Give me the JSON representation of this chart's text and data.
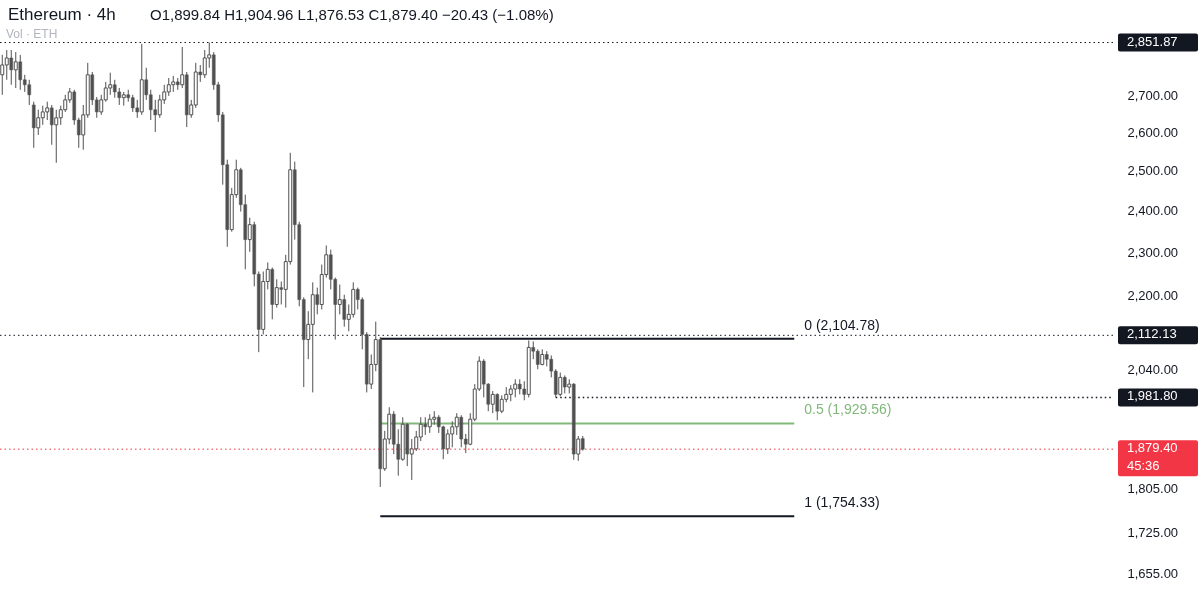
{
  "chart_data": {
    "type": "candlestick",
    "title": "Ethereum · 4h",
    "subtitle": "O1,899.84 H1,904.96 L1,876.53 C1,879.40 −20.43 (−1.08%)",
    "color": "#505050",
    "categories": [
      null,
      null,
      null,
      null,
      null,
      null,
      null,
      null,
      null,
      null,
      null,
      null,
      null,
      null,
      null,
      null,
      null,
      null,
      null,
      null,
      null,
      null,
      null,
      null,
      null,
      null,
      null,
      null,
      null,
      null,
      null,
      null,
      null,
      null,
      null,
      null,
      null,
      null,
      null,
      null,
      null,
      null,
      null,
      null,
      null,
      null,
      null,
      null,
      null,
      null,
      null,
      null,
      null,
      null,
      null,
      null,
      null,
      null,
      null,
      null,
      null,
      null,
      null,
      null,
      null,
      null,
      null,
      null,
      null,
      null,
      null,
      null,
      null,
      null,
      null,
      null,
      null,
      null,
      null,
      null,
      null,
      null,
      null,
      null,
      null,
      null,
      null,
      null,
      null,
      null,
      null,
      null,
      null,
      null,
      null,
      null,
      null,
      null,
      null,
      null,
      null,
      null,
      null,
      null,
      null,
      null,
      null,
      null,
      null,
      null,
      null,
      null,
      null,
      null,
      null,
      null,
      null,
      null,
      null,
      null,
      null,
      null,
      null,
      null,
      null,
      null,
      null,
      null,
      null,
      null,
      null,
      null,
      null,
      null,
      null,
      null,
      null,
      null,
      null,
      null,
      null,
      null,
      null,
      null,
      null,
      null,
      null,
      null,
      null,
      null,
      null,
      null,
      null,
      null,
      null,
      null,
      null,
      null,
      null,
      null,
      null,
      null,
      null,
      null,
      null,
      null,
      null,
      null,
      null,
      null,
      null,
      null,
      null,
      null,
      null,
      null,
      null,
      null,
      null,
      null,
      null,
      null,
      null,
      null,
      null,
      null,
      null,
      null,
      null,
      null,
      null,
      null,
      null,
      null,
      null,
      null,
      null,
      null,
      null,
      null,
      null,
      null,
      null,
      null,
      null,
      null,
      null,
      null,
      null,
      null,
      null,
      null,
      null,
      null,
      null,
      null,
      null,
      null,
      null,
      null,
      null,
      null,
      null,
      null,
      null,
      null,
      null,
      null,
      null,
      null,
      null,
      null,
      null,
      null,
      null,
      null,
      null,
      null,
      null,
      null,
      null,
      null,
      null,
      null,
      null,
      null,
      null,
      null
    ],
    "ohlc": [
      [
        2759,
        2816,
        2703,
        2787
      ],
      [
        2787,
        2830,
        2745,
        2807
      ],
      [
        2807,
        2830,
        2731,
        2773
      ],
      [
        2773,
        2824,
        2722,
        2796
      ],
      [
        2796,
        2816,
        2717,
        2745
      ],
      [
        2745,
        2759,
        2711,
        2731
      ],
      [
        2731,
        2745,
        2675,
        2703
      ],
      [
        2675,
        2684,
        2560,
        2613
      ],
      [
        2613,
        2662,
        2594,
        2640
      ],
      [
        2640,
        2673,
        2621,
        2656
      ],
      [
        2656,
        2684,
        2634,
        2667
      ],
      [
        2667,
        2675,
        2568,
        2621
      ],
      [
        2621,
        2662,
        2521,
        2640
      ],
      [
        2640,
        2673,
        2621,
        2662
      ],
      [
        2662,
        2703,
        2656,
        2689
      ],
      [
        2689,
        2722,
        2681,
        2711
      ],
      [
        2711,
        2717,
        2621,
        2634
      ],
      [
        2634,
        2640,
        2560,
        2594
      ],
      [
        2594,
        2675,
        2555,
        2648
      ],
      [
        2648,
        2793,
        2640,
        2759
      ],
      [
        2759,
        2767,
        2675,
        2689
      ],
      [
        2689,
        2697,
        2640,
        2656
      ],
      [
        2656,
        2703,
        2648,
        2689
      ],
      [
        2689,
        2739,
        2684,
        2722
      ],
      [
        2722,
        2765,
        2703,
        2731
      ],
      [
        2731,
        2745,
        2695,
        2711
      ],
      [
        2711,
        2722,
        2675,
        2695
      ],
      [
        2695,
        2711,
        2673,
        2703
      ],
      [
        2703,
        2717,
        2684,
        2695
      ],
      [
        2695,
        2703,
        2656,
        2667
      ],
      [
        2667,
        2689,
        2640,
        2656
      ],
      [
        2656,
        2848,
        2648,
        2745
      ],
      [
        2745,
        2779,
        2689,
        2703
      ],
      [
        2703,
        2717,
        2634,
        2662
      ],
      [
        2662,
        2689,
        2602,
        2648
      ],
      [
        2648,
        2703,
        2640,
        2689
      ],
      [
        2689,
        2731,
        2678,
        2711
      ],
      [
        2711,
        2750,
        2700,
        2731
      ],
      [
        2731,
        2756,
        2711,
        2739
      ],
      [
        2739,
        2750,
        2717,
        2731
      ],
      [
        2731,
        2839,
        2722,
        2759
      ],
      [
        2759,
        2767,
        2615,
        2648
      ],
      [
        2648,
        2689,
        2640,
        2675
      ],
      [
        2675,
        2793,
        2667,
        2767
      ],
      [
        2767,
        2787,
        2739,
        2759
      ],
      [
        2759,
        2830,
        2750,
        2807
      ],
      [
        2807,
        2851.87,
        2779,
        2816
      ],
      [
        2816,
        2824,
        2717,
        2731
      ],
      [
        2731,
        2739,
        2629,
        2648
      ],
      [
        2648,
        2656,
        2465,
        2516
      ],
      [
        2516,
        2529,
        2313,
        2354
      ],
      [
        2354,
        2457,
        2349,
        2440
      ],
      [
        2440,
        2529,
        2432,
        2503
      ],
      [
        2503,
        2508,
        2398,
        2415
      ],
      [
        2415,
        2440,
        2260,
        2330
      ],
      [
        2330,
        2383,
        2301,
        2366
      ],
      [
        2366,
        2373,
        2221,
        2249
      ],
      [
        2249,
        2255,
        2076,
        2125
      ],
      [
        2125,
        2255,
        2114,
        2232
      ],
      [
        2232,
        2276,
        2214,
        2260
      ],
      [
        2260,
        2264,
        2147,
        2180
      ],
      [
        2180,
        2237,
        2173,
        2218
      ],
      [
        2218,
        2232,
        2180,
        2214
      ],
      [
        2214,
        2294,
        2173,
        2278
      ],
      [
        2278,
        2547,
        2271,
        2503
      ],
      [
        2503,
        2524,
        2330,
        2366
      ],
      [
        2366,
        2373,
        2176,
        2191
      ],
      [
        2191,
        2196,
        2003,
        2103
      ],
      [
        2103,
        2165,
        2061,
        2136
      ],
      [
        2136,
        2230,
        1992,
        2202
      ],
      [
        2202,
        2218,
        2158,
        2180
      ],
      [
        2180,
        2271,
        2169,
        2248
      ],
      [
        2248,
        2316,
        2241,
        2294
      ],
      [
        2294,
        2306,
        2214,
        2237
      ],
      [
        2237,
        2241,
        2103,
        2180
      ],
      [
        2180,
        2225,
        2158,
        2191
      ],
      [
        2191,
        2202,
        2131,
        2147
      ],
      [
        2147,
        2180,
        2121,
        2158
      ],
      [
        2158,
        2230,
        2151,
        2214
      ],
      [
        2214,
        2218,
        2169,
        2191
      ],
      [
        2191,
        2196,
        2082,
        2114
      ],
      [
        2114,
        2119,
        1992,
        2009
      ],
      [
        2009,
        2071,
        1999,
        2050
      ],
      [
        2050,
        2142,
        2036,
        2103
      ],
      [
        2103,
        2108,
        1808,
        1842
      ],
      [
        1842,
        1915,
        1838,
        1899
      ],
      [
        1899,
        1962,
        1889,
        1948
      ],
      [
        1948,
        1954,
        1870,
        1889
      ],
      [
        1889,
        1918,
        1829,
        1860
      ],
      [
        1860,
        1942,
        1857,
        1928
      ],
      [
        1928,
        1930,
        1847,
        1870
      ],
      [
        1870,
        1899,
        1821,
        1880
      ],
      [
        1880,
        1915,
        1876,
        1903
      ],
      [
        1903,
        1942,
        1895,
        1928
      ],
      [
        1928,
        1942,
        1907,
        1923
      ],
      [
        1923,
        1948,
        1911,
        1938
      ],
      [
        1938,
        1954,
        1927,
        1942
      ],
      [
        1942,
        1946,
        1911,
        1923
      ],
      [
        1923,
        1925,
        1860,
        1880
      ],
      [
        1880,
        1918,
        1870,
        1909
      ],
      [
        1909,
        1934,
        1883,
        1923
      ],
      [
        1923,
        1950,
        1907,
        1942
      ],
      [
        1942,
        1946,
        1883,
        1899
      ],
      [
        1899,
        1909,
        1872,
        1889
      ],
      [
        1889,
        1950,
        1887,
        1938
      ],
      [
        1938,
        2009,
        1934,
        1999
      ],
      [
        1999,
        2067,
        1995,
        2057
      ],
      [
        2057,
        2061,
        1982,
        2009
      ],
      [
        2009,
        2011,
        1954,
        1968
      ],
      [
        1968,
        1995,
        1950,
        1988
      ],
      [
        1988,
        1990,
        1936,
        1954
      ],
      [
        1954,
        1986,
        1950,
        1978
      ],
      [
        1978,
        2003,
        1972,
        1988
      ],
      [
        1988,
        2007,
        1974,
        1999
      ],
      [
        1999,
        2019,
        1982,
        2009
      ],
      [
        2009,
        2019,
        1988,
        1999
      ],
      [
        1999,
        2015,
        1976,
        1988
      ],
      [
        1988,
        2101,
        1982,
        2086
      ],
      [
        2086,
        2099,
        2061,
        2078
      ],
      [
        2078,
        2082,
        2040,
        2050
      ],
      [
        2050,
        2082,
        2048,
        2071
      ],
      [
        2071,
        2078,
        2046,
        2061
      ],
      [
        2061,
        2069,
        2023,
        2036
      ],
      [
        2036,
        2040,
        1981.8,
        1988
      ],
      [
        1988,
        2033,
        1984,
        2023
      ],
      [
        2023,
        2027,
        1990,
        2003
      ],
      [
        2003,
        2019,
        1990,
        2009
      ],
      [
        2009,
        2011,
        1859,
        1870
      ],
      [
        1870,
        1905,
        1857,
        1899
      ],
      [
        1899.84,
        1904.96,
        1876.53,
        1879.4
      ],
      null,
      null,
      null,
      null,
      null,
      null,
      null,
      null,
      null,
      null,
      null,
      null,
      null,
      null,
      null,
      null,
      null,
      null,
      null,
      null,
      null,
      null,
      null,
      null,
      null,
      null,
      null,
      null,
      null,
      null,
      null,
      null,
      null,
      null,
      null,
      null,
      null,
      null,
      null,
      null,
      null,
      null,
      null,
      null,
      null,
      null,
      null,
      null,
      null,
      null,
      null,
      null,
      null,
      null,
      null,
      null,
      null,
      null,
      null,
      null,
      null,
      null,
      null,
      null,
      null,
      null,
      null,
      null,
      null,
      null,
      null,
      null,
      null,
      null,
      null,
      null,
      null,
      null,
      null,
      null,
      null,
      null,
      null,
      null,
      null,
      null,
      null,
      null,
      null,
      null,
      null,
      null,
      null,
      null,
      null,
      null,
      null,
      null,
      null,
      null,
      null,
      null,
      null,
      null,
      null,
      null,
      null,
      null,
      null,
      null,
      null,
      null,
      null,
      null,
      null,
      null,
      null,
      null
    ],
    "series": [
      {
        "name": "0 (2,104.78)",
        "type": "line",
        "color": "#131722",
        "values": [
          null,
          null,
          null,
          null,
          null,
          null,
          null,
          null,
          null,
          null,
          null,
          null,
          null,
          null,
          null,
          null,
          null,
          null,
          null,
          null,
          null,
          null,
          null,
          null,
          null,
          null,
          null,
          null,
          null,
          null,
          null,
          null,
          null,
          null,
          null,
          null,
          null,
          null,
          null,
          null,
          null,
          null,
          null,
          null,
          null,
          null,
          null,
          null,
          null,
          null,
          null,
          null,
          null,
          null,
          null,
          null,
          null,
          null,
          null,
          null,
          null,
          null,
          null,
          null,
          null,
          null,
          null,
          null,
          null,
          null,
          null,
          null,
          null,
          null,
          null,
          null,
          null,
          null,
          null,
          null,
          null,
          null,
          null,
          null,
          2104.78,
          2104.78,
          2104.78,
          2104.78,
          2104.78,
          2104.78,
          2104.78,
          2104.78,
          2104.78,
          2104.78,
          2104.78,
          2104.78,
          2104.78,
          2104.78,
          2104.78,
          2104.78,
          2104.78,
          2104.78,
          2104.78,
          2104.78,
          2104.78,
          2104.78,
          2104.78,
          2104.78,
          2104.78,
          2104.78,
          2104.78,
          2104.78,
          2104.78,
          2104.78,
          2104.78,
          2104.78,
          2104.78,
          2104.78,
          2104.78,
          2104.78,
          2104.78,
          2104.78,
          2104.78,
          2104.78,
          2104.78,
          2104.78,
          2104.78,
          2104.78,
          2104.78,
          2104.78,
          2104.78,
          2104.78,
          2104.78,
          2104.78,
          2104.78,
          2104.78,
          2104.78,
          2104.78,
          2104.78,
          2104.78,
          2104.78,
          2104.78,
          2104.78,
          2104.78,
          2104.78,
          2104.78,
          2104.78,
          2104.78,
          2104.78,
          2104.78,
          2104.78,
          2104.78,
          2104.78,
          2104.78,
          2104.78,
          2104.78,
          2104.78,
          2104.78,
          2104.78,
          2104.78,
          2104.78,
          2104.78,
          2104.78,
          2104.78,
          2104.78,
          2104.78,
          2104.78,
          2104.78,
          2104.78,
          2104.78,
          2104.78,
          2104.78,
          2104.78,
          2104.78,
          2104.78,
          2104.78,
          2104.78,
          null,
          null,
          null,
          null,
          null,
          null,
          null,
          null,
          null,
          null,
          null,
          null,
          null,
          null,
          null,
          null,
          null,
          null,
          null,
          null,
          null,
          null,
          null,
          null,
          null,
          null,
          null,
          null,
          null,
          null,
          null,
          null,
          null,
          null,
          null,
          null,
          null,
          null,
          null,
          null,
          null,
          null,
          null,
          null,
          null,
          null,
          null,
          null,
          null,
          null,
          null,
          null,
          null,
          null,
          null,
          null,
          null,
          null,
          null,
          null,
          null,
          null,
          null,
          null,
          null,
          null,
          null,
          null,
          null,
          null,
          null
        ]
      },
      {
        "name": "0.5 (1,929.56)",
        "type": "line",
        "color": "#81b97a",
        "values": [
          null,
          null,
          null,
          null,
          null,
          null,
          null,
          null,
          null,
          null,
          null,
          null,
          null,
          null,
          null,
          null,
          null,
          null,
          null,
          null,
          null,
          null,
          null,
          null,
          null,
          null,
          null,
          null,
          null,
          null,
          null,
          null,
          null,
          null,
          null,
          null,
          null,
          null,
          null,
          null,
          null,
          null,
          null,
          null,
          null,
          null,
          null,
          null,
          null,
          null,
          null,
          null,
          null,
          null,
          null,
          null,
          null,
          null,
          null,
          null,
          null,
          null,
          null,
          null,
          null,
          null,
          null,
          null,
          null,
          null,
          null,
          null,
          null,
          null,
          null,
          null,
          null,
          null,
          null,
          null,
          null,
          null,
          null,
          null,
          1929.56,
          1929.56,
          1929.56,
          1929.56,
          1929.56,
          1929.56,
          1929.56,
          1929.56,
          1929.56,
          1929.56,
          1929.56,
          1929.56,
          1929.56,
          1929.56,
          1929.56,
          1929.56,
          1929.56,
          1929.56,
          1929.56,
          1929.56,
          1929.56,
          1929.56,
          1929.56,
          1929.56,
          1929.56,
          1929.56,
          1929.56,
          1929.56,
          1929.56,
          1929.56,
          1929.56,
          1929.56,
          1929.56,
          1929.56,
          1929.56,
          1929.56,
          1929.56,
          1929.56,
          1929.56,
          1929.56,
          1929.56,
          1929.56,
          1929.56,
          1929.56,
          1929.56,
          1929.56,
          1929.56,
          1929.56,
          1929.56,
          1929.56,
          1929.56,
          1929.56,
          1929.56,
          1929.56,
          1929.56,
          1929.56,
          1929.56,
          1929.56,
          1929.56,
          1929.56,
          1929.56,
          1929.56,
          1929.56,
          1929.56,
          1929.56,
          1929.56,
          1929.56,
          1929.56,
          1929.56,
          1929.56,
          1929.56,
          1929.56,
          1929.56,
          1929.56,
          1929.56,
          1929.56,
          1929.56,
          1929.56,
          1929.56,
          1929.56,
          1929.56,
          1929.56,
          1929.56,
          1929.56,
          1929.56,
          1929.56,
          1929.56,
          1929.56,
          1929.56,
          1929.56,
          1929.56,
          1929.56,
          1929.56,
          null,
          null,
          null,
          null,
          null,
          null,
          null,
          null,
          null,
          null,
          null,
          null,
          null,
          null,
          null,
          null,
          null,
          null,
          null,
          null,
          null,
          null,
          null,
          null,
          null,
          null,
          null,
          null,
          null,
          null,
          null,
          null,
          null,
          null,
          null,
          null,
          null,
          null,
          null,
          null,
          null,
          null,
          null,
          null,
          null,
          null,
          null,
          null,
          null,
          null,
          null,
          null,
          null,
          null,
          null,
          null,
          null,
          null,
          null,
          null,
          null,
          null,
          null,
          null,
          null,
          null,
          null,
          null,
          null,
          null,
          null
        ]
      },
      {
        "name": "1 (1,754.33)",
        "type": "line",
        "color": "#131722",
        "values": [
          null,
          null,
          null,
          null,
          null,
          null,
          null,
          null,
          null,
          null,
          null,
          null,
          null,
          null,
          null,
          null,
          null,
          null,
          null,
          null,
          null,
          null,
          null,
          null,
          null,
          null,
          null,
          null,
          null,
          null,
          null,
          null,
          null,
          null,
          null,
          null,
          null,
          null,
          null,
          null,
          null,
          null,
          null,
          null,
          null,
          null,
          null,
          null,
          null,
          null,
          null,
          null,
          null,
          null,
          null,
          null,
          null,
          null,
          null,
          null,
          null,
          null,
          null,
          null,
          null,
          null,
          null,
          null,
          null,
          null,
          null,
          null,
          null,
          null,
          null,
          null,
          null,
          null,
          null,
          null,
          null,
          null,
          null,
          null,
          1754.33,
          1754.33,
          1754.33,
          1754.33,
          1754.33,
          1754.33,
          1754.33,
          1754.33,
          1754.33,
          1754.33,
          1754.33,
          1754.33,
          1754.33,
          1754.33,
          1754.33,
          1754.33,
          1754.33,
          1754.33,
          1754.33,
          1754.33,
          1754.33,
          1754.33,
          1754.33,
          1754.33,
          1754.33,
          1754.33,
          1754.33,
          1754.33,
          1754.33,
          1754.33,
          1754.33,
          1754.33,
          1754.33,
          1754.33,
          1754.33,
          1754.33,
          1754.33,
          1754.33,
          1754.33,
          1754.33,
          1754.33,
          1754.33,
          1754.33,
          1754.33,
          1754.33,
          1754.33,
          1754.33,
          1754.33,
          1754.33,
          1754.33,
          1754.33,
          1754.33,
          1754.33,
          1754.33,
          1754.33,
          1754.33,
          1754.33,
          1754.33,
          1754.33,
          1754.33,
          1754.33,
          1754.33,
          1754.33,
          1754.33,
          1754.33,
          1754.33,
          1754.33,
          1754.33,
          1754.33,
          1754.33,
          1754.33,
          1754.33,
          1754.33,
          1754.33,
          1754.33,
          1754.33,
          1754.33,
          1754.33,
          1754.33,
          1754.33,
          1754.33,
          1754.33,
          1754.33,
          1754.33,
          1754.33,
          1754.33,
          1754.33,
          1754.33,
          1754.33,
          1754.33,
          1754.33,
          1754.33,
          1754.33,
          null,
          null,
          null,
          null,
          null,
          null,
          null,
          null,
          null,
          null,
          null,
          null,
          null,
          null,
          null,
          null,
          null,
          null,
          null,
          null,
          null,
          null,
          null,
          null,
          null,
          null,
          null,
          null,
          null,
          null,
          null,
          null,
          null,
          null,
          null,
          null,
          null,
          null,
          null,
          null,
          null,
          null,
          null,
          null,
          null,
          null,
          null,
          null,
          null,
          null,
          null,
          null,
          null,
          null,
          null,
          null,
          null,
          null,
          null,
          null,
          null,
          null,
          null,
          null,
          null,
          null,
          null,
          null,
          null,
          null,
          null
        ]
      },
      {
        "name": "1,981.80",
        "type": "line",
        "color": "#131722",
        "line_style": "dotted",
        "values": [
          null,
          null,
          null,
          null,
          null,
          null,
          null,
          null,
          null,
          null,
          null,
          null,
          null,
          null,
          null,
          null,
          null,
          null,
          null,
          null,
          null,
          null,
          null,
          null,
          null,
          null,
          null,
          null,
          null,
          null,
          null,
          null,
          null,
          null,
          null,
          null,
          null,
          null,
          null,
          null,
          null,
          null,
          null,
          null,
          null,
          null,
          null,
          null,
          null,
          null,
          null,
          null,
          null,
          null,
          null,
          null,
          null,
          null,
          null,
          null,
          null,
          null,
          null,
          null,
          null,
          null,
          null,
          null,
          null,
          null,
          null,
          null,
          null,
          null,
          null,
          null,
          null,
          null,
          null,
          null,
          null,
          null,
          null,
          null,
          null,
          null,
          null,
          null,
          null,
          null,
          null,
          null,
          null,
          null,
          null,
          null,
          null,
          null,
          null,
          null,
          null,
          null,
          null,
          null,
          null,
          null,
          null,
          null,
          null,
          null,
          null,
          null,
          null,
          null,
          null,
          null,
          null,
          null,
          null,
          null,
          null,
          null,
          null,
          1981.8,
          1981.8,
          1981.8,
          1981.8,
          1981.8,
          1981.8,
          1981.8,
          1981.8,
          1981.8,
          1981.8,
          1981.8,
          1981.8,
          1981.8,
          1981.8,
          1981.8,
          1981.8,
          1981.8,
          1981.8,
          1981.8,
          1981.8,
          1981.8,
          1981.8,
          1981.8,
          1981.8,
          1981.8,
          1981.8,
          1981.8,
          1981.8,
          1981.8,
          1981.8,
          1981.8,
          1981.8,
          1981.8,
          1981.8,
          1981.8,
          1981.8,
          1981.8,
          1981.8,
          1981.8,
          1981.8,
          1981.8,
          1981.8,
          1981.8,
          1981.8,
          1981.8,
          1981.8,
          1981.8,
          1981.8,
          1981.8,
          1981.8,
          1981.8,
          1981.8,
          1981.8,
          1981.8,
          1981.8,
          1981.8,
          1981.8,
          1981.8,
          1981.8,
          1981.8,
          1981.8,
          1981.8,
          1981.8,
          1981.8,
          1981.8,
          1981.8,
          1981.8,
          1981.8,
          1981.8,
          1981.8,
          1981.8,
          1981.8,
          1981.8,
          1981.8,
          1981.8,
          1981.8,
          1981.8,
          1981.8,
          1981.8,
          1981.8,
          1981.8,
          1981.8,
          1981.8,
          1981.8,
          1981.8,
          1981.8,
          1981.8,
          1981.8,
          1981.8,
          1981.8,
          1981.8,
          1981.8,
          1981.8,
          1981.8,
          1981.8,
          1981.8,
          1981.8,
          1981.8,
          1981.8,
          1981.8,
          1981.8,
          1981.8,
          1981.8,
          1981.8,
          1981.8,
          1981.8,
          1981.8,
          1981.8,
          1981.8,
          1981.8,
          1981.8,
          1981.8,
          1981.8,
          1981.8,
          1981.8,
          1981.8,
          1981.8,
          1981.8,
          1981.8,
          1981.8,
          1981.8,
          1981.8,
          1981.8,
          1981.8,
          1981.8
        ]
      }
    ],
    "ylim": [
      1615,
      2979
    ],
    "yticks": [
      {
        "value": 2700,
        "label": "2,700.00"
      },
      {
        "value": 2600,
        "label": "2,600.00"
      },
      {
        "value": 2500,
        "label": "2,500.00"
      },
      {
        "value": 2400,
        "label": "2,400.00"
      },
      {
        "value": 2300,
        "label": "2,300.00"
      },
      {
        "value": 2200,
        "label": "2,200.00"
      },
      {
        "value": 2040,
        "label": "2,040.00"
      },
      {
        "value": 1805,
        "label": "1,805.00"
      },
      {
        "value": 1725,
        "label": "1,725.00"
      },
      {
        "value": 1655,
        "label": "1,655.00"
      }
    ],
    "log": true,
    "tick_labels": "y",
    "ref_lines": [
      {
        "axis": "y",
        "value": 2851.87,
        "label": "2,851.87",
        "color": "#131722",
        "line_style": "dotted"
      },
      {
        "axis": "y",
        "value": 2112.13,
        "label": "2,112.13",
        "color": "#131722",
        "line_style": "dotted"
      },
      {
        "axis": "y",
        "value": 1879.4,
        "label": "1,879.40\n45:36",
        "color": "#f23645",
        "line_style": "dotted"
      }
    ],
    "annotations": [
      "Vol · ETH"
    ]
  }
}
